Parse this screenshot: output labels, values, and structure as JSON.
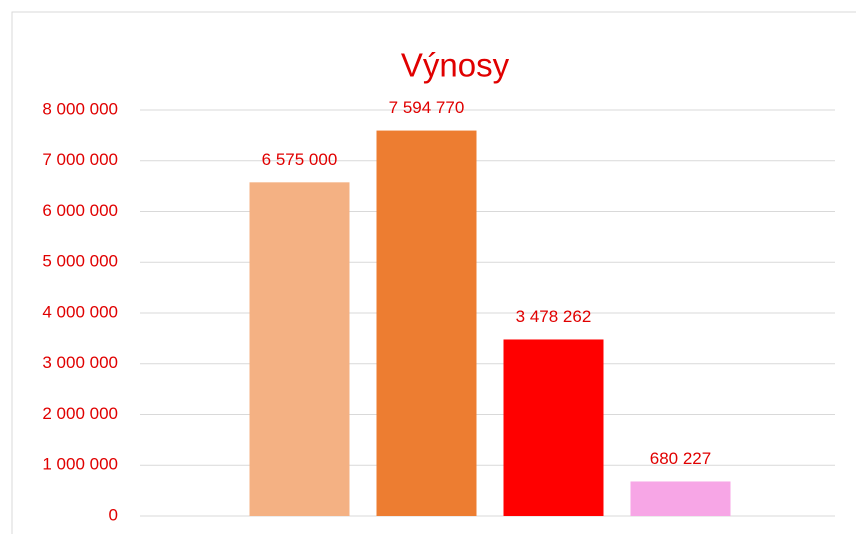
{
  "chart_data": {
    "type": "bar",
    "title": "Výnosy",
    "categories": [
      null,
      null,
      null,
      null
    ],
    "values": [
      6575000,
      7594770,
      3478262,
      680227
    ],
    "value_labels": [
      "6 575 000",
      "7 594 770",
      "3 478 262",
      "680 227"
    ],
    "colors": [
      "#f4b183",
      "#ed7d31",
      "#ff0000",
      "#f7a6e6"
    ],
    "ylim": [
      0,
      8000000
    ],
    "yticks": [
      {
        "value": 0,
        "label": "0"
      },
      {
        "value": 1000000,
        "label": "1 000 000"
      },
      {
        "value": 2000000,
        "label": "2 000 000"
      },
      {
        "value": 3000000,
        "label": "3 000 000"
      },
      {
        "value": 4000000,
        "label": "4 000 000"
      },
      {
        "value": 5000000,
        "label": "5 000 000"
      },
      {
        "value": 6000000,
        "label": "6 000 000"
      },
      {
        "value": 7000000,
        "label": "7 000 000"
      },
      {
        "value": 8000000,
        "label": "8 000 000"
      }
    ],
    "grid": true
  }
}
